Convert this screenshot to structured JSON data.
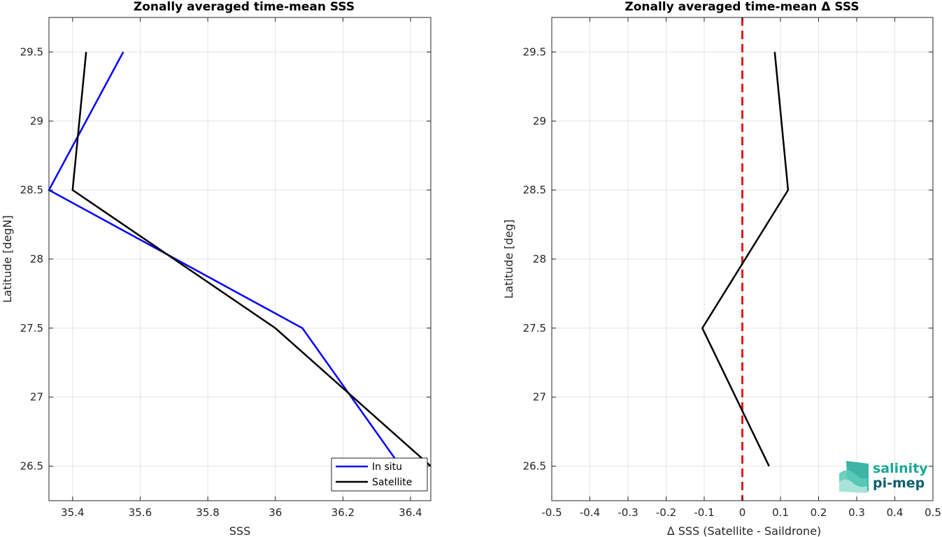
{
  "chart_data": [
    {
      "type": "line",
      "title": "Zonally averaged time-mean SSS",
      "xlabel": "SSS",
      "ylabel": "Latitude [degN]",
      "xlim": [
        35.33,
        36.46
      ],
      "ylim": [
        26.25,
        29.75
      ],
      "xticks": [
        35.4,
        35.6,
        35.8,
        36,
        36.2,
        36.4
      ],
      "yticks": [
        26.5,
        27,
        27.5,
        28,
        28.5,
        29,
        29.5
      ],
      "grid": true,
      "legend_position": "bottom-right",
      "series": [
        {
          "name": "In situ",
          "color": "#0000ff",
          "points": [
            [
              35.55,
              29.5
            ],
            [
              35.33,
              28.5
            ],
            [
              36.08,
              27.5
            ],
            [
              36.37,
              26.5
            ]
          ]
        },
        {
          "name": "Satellite",
          "color": "#000000",
          "points": [
            [
              35.44,
              29.5
            ],
            [
              35.4,
              28.5
            ],
            [
              36.0,
              27.5
            ],
            [
              36.46,
              26.5
            ]
          ]
        }
      ]
    },
    {
      "type": "line",
      "title": "Zonally averaged time-mean Δ SSS",
      "xlabel": "Δ SSS (Satellite - Saildrone)",
      "ylabel": "Latitude [deg]",
      "xlim": [
        -0.5,
        0.5
      ],
      "ylim": [
        26.25,
        29.75
      ],
      "xticks": [
        -0.5,
        -0.4,
        -0.3,
        -0.2,
        -0.1,
        0,
        0.1,
        0.2,
        0.3,
        0.4,
        0.5
      ],
      "yticks": [
        26.5,
        27,
        27.5,
        28,
        28.5,
        29,
        29.5
      ],
      "grid": true,
      "reference_line": {
        "x": 0,
        "color": "#e41a1c",
        "style": "dashed"
      },
      "series": [
        {
          "color": "#000000",
          "points": [
            [
              0.085,
              29.5
            ],
            [
              0.12,
              28.5
            ],
            [
              -0.105,
              27.5
            ],
            [
              0.07,
              26.5
            ]
          ]
        }
      ]
    }
  ],
  "logo": {
    "line1": "salinity",
    "line2": "pi-mep",
    "color1": "#1aa898",
    "color2": "#0f5f6e"
  }
}
